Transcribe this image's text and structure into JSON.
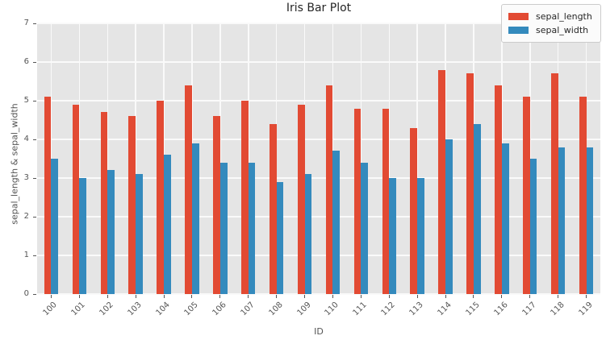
{
  "chart_data": {
    "type": "bar",
    "title": "Iris Bar Plot",
    "xlabel": "ID",
    "ylabel": "sepal_length & sepal_width",
    "categories": [
      "100",
      "101",
      "102",
      "103",
      "104",
      "105",
      "106",
      "107",
      "108",
      "109",
      "110",
      "111",
      "112",
      "113",
      "114",
      "115",
      "116",
      "117",
      "118",
      "119"
    ],
    "series": [
      {
        "name": "sepal_length",
        "color": "#E24A33",
        "values": [
          5.1,
          4.9,
          4.7,
          4.6,
          5.0,
          5.4,
          4.6,
          5.0,
          4.4,
          4.9,
          5.4,
          4.8,
          4.8,
          4.3,
          5.8,
          5.7,
          5.4,
          5.1,
          5.7,
          5.1
        ]
      },
      {
        "name": "sepal_width",
        "color": "#348ABD",
        "values": [
          3.5,
          3.0,
          3.2,
          3.1,
          3.6,
          3.9,
          3.4,
          3.4,
          2.9,
          3.1,
          3.7,
          3.4,
          3.0,
          3.0,
          4.0,
          4.4,
          3.9,
          3.5,
          3.8,
          3.8
        ]
      }
    ],
    "ylim": [
      0,
      7
    ],
    "yticks": [
      0,
      1,
      2,
      3,
      4,
      5,
      6,
      7
    ],
    "grid": true,
    "legend_position": "upper right",
    "colors": {
      "plot_background": "#E5E5E5",
      "grid_line": "#FAFAFA",
      "tick_text": "#555555",
      "title_text": "#262626",
      "legend_background": "#FBFBFB",
      "legend_border": "#CCCCCC"
    }
  }
}
